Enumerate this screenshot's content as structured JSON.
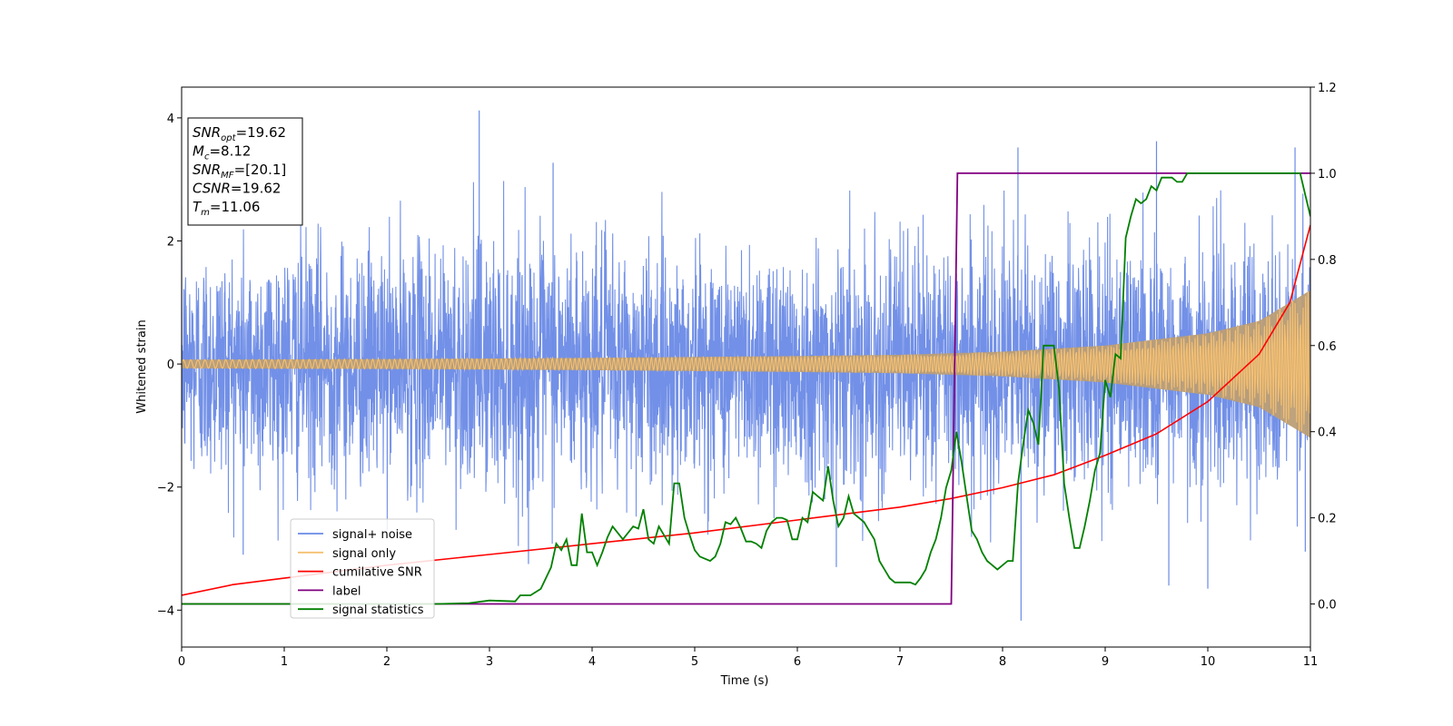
{
  "chart_data": {
    "type": "line",
    "xlabel": "Time (s)",
    "ylabel": "Whitened strain",
    "xlim": [
      0,
      11
    ],
    "ylim_left": [
      -4.6,
      4.5
    ],
    "ylim_right": [
      -0.1,
      1.2
    ],
    "x_ticks": [
      "0",
      "1",
      "2",
      "3",
      "4",
      "5",
      "6",
      "7",
      "8",
      "9",
      "10",
      "11"
    ],
    "y_left_ticks": [
      "4",
      "2",
      "0",
      "−2",
      "−4"
    ],
    "y_right_ticks": [
      "1.2",
      "1.0",
      "0.8",
      "0.6",
      "0.4",
      "0.2",
      "0.0"
    ],
    "colors": {
      "noise": "#6a8ae6",
      "signal": "#f5c071",
      "overlap": "#bb9e76",
      "snr": "#ff0000",
      "label": "#800080",
      "stats": "#008000"
    },
    "legend": {
      "placement": "lower-left",
      "entries": [
        {
          "key": "noise",
          "text": "signal+ noise"
        },
        {
          "key": "signal",
          "text": "signal only"
        },
        {
          "key": "snr",
          "text": "cumilative SNR"
        },
        {
          "key": "label",
          "text": "label"
        },
        {
          "key": "stats",
          "text": "signal statistics"
        }
      ]
    },
    "info_box": {
      "lines": [
        {
          "main": "SNR",
          "sub": "opt",
          "rest": "=19.62"
        },
        {
          "main": "M",
          "sub": "c",
          "rest": "=8.12"
        },
        {
          "main": "SNR",
          "sub": "MF",
          "rest": "=[20.1]"
        },
        {
          "main": "CSNR",
          "sub": "",
          "rest": "=19.62"
        },
        {
          "main": "T",
          "sub": "m",
          "rest": "=11.06"
        }
      ]
    },
    "series": [
      {
        "key": "noise",
        "axis": "left",
        "description_points": "noise envelope (data units)",
        "envelope": {
          "x": [
            0,
            1,
            2,
            3,
            4,
            5,
            6,
            7,
            8,
            9,
            10,
            11
          ],
          "upper": [
            2.4,
            2.5,
            2.4,
            2.6,
            2.5,
            2.4,
            2.4,
            2.5,
            2.5,
            2.5,
            2.5,
            2.6
          ],
          "lower": [
            -2.4,
            -2.5,
            -2.5,
            -2.6,
            -2.5,
            -2.4,
            -2.5,
            -2.5,
            -2.6,
            -2.5,
            -2.6,
            -2.6
          ]
        },
        "spikes": [
          {
            "x": 2.9,
            "y": 4.12
          },
          {
            "x": 3.62,
            "y": 3.27
          },
          {
            "x": 9.5,
            "y": 3.62
          },
          {
            "x": 8.15,
            "y": 3.52
          },
          {
            "x": 10.85,
            "y": 3.52
          },
          {
            "x": 8.18,
            "y": -4.17
          },
          {
            "x": 10.0,
            "y": -3.65
          },
          {
            "x": 9.62,
            "y": -3.6
          },
          {
            "x": 0.6,
            "y": -3.1
          },
          {
            "x": 3.38,
            "y": -3.25
          },
          {
            "x": 6.38,
            "y": -3.3
          },
          {
            "x": 10.95,
            "y": -3.05
          }
        ]
      },
      {
        "key": "signal",
        "axis": "left",
        "amplitude": {
          "x": [
            0,
            2,
            4,
            6,
            7,
            8,
            9,
            10,
            10.5,
            11
          ],
          "y": [
            0.07,
            0.08,
            0.1,
            0.13,
            0.15,
            0.2,
            0.3,
            0.5,
            0.7,
            1.2
          ]
        }
      },
      {
        "key": "snr",
        "axis": "right",
        "x": [
          0,
          0.5,
          1,
          2,
          3,
          4,
          5,
          6,
          7,
          7.5,
          8,
          8.5,
          9,
          9.5,
          10,
          10.5,
          10.8,
          11
        ],
        "y": [
          0.02,
          0.045,
          0.06,
          0.09,
          0.115,
          0.14,
          0.165,
          0.195,
          0.225,
          0.245,
          0.27,
          0.3,
          0.345,
          0.395,
          0.47,
          0.58,
          0.7,
          0.88
        ]
      },
      {
        "key": "label",
        "axis": "right",
        "x": [
          0,
          7.5,
          7.56,
          11
        ],
        "y": [
          0.0,
          0.0,
          1.0,
          1.0
        ]
      },
      {
        "key": "stats",
        "axis": "right",
        "x": [
          0,
          0.5,
          1,
          1.5,
          2,
          2.5,
          2.8,
          3.0,
          3.25,
          3.3,
          3.4,
          3.5,
          3.55,
          3.6,
          3.65,
          3.7,
          3.75,
          3.8,
          3.85,
          3.9,
          3.95,
          4.0,
          4.05,
          4.1,
          4.15,
          4.2,
          4.3,
          4.4,
          4.45,
          4.5,
          4.55,
          4.6,
          4.65,
          4.7,
          4.75,
          4.8,
          4.85,
          4.9,
          4.95,
          5.0,
          5.05,
          5.1,
          5.15,
          5.2,
          5.25,
          5.3,
          5.35,
          5.4,
          5.45,
          5.5,
          5.55,
          5.6,
          5.65,
          5.7,
          5.75,
          5.8,
          5.85,
          5.9,
          5.95,
          6.0,
          6.05,
          6.1,
          6.15,
          6.2,
          6.25,
          6.3,
          6.35,
          6.4,
          6.45,
          6.5,
          6.55,
          6.6,
          6.65,
          6.7,
          6.75,
          6.8,
          6.85,
          6.9,
          6.95,
          7.0,
          7.05,
          7.1,
          7.15,
          7.2,
          7.25,
          7.3,
          7.35,
          7.4,
          7.45,
          7.5,
          7.55,
          7.6,
          7.65,
          7.7,
          7.75,
          7.8,
          7.85,
          7.9,
          7.95,
          8.0,
          8.05,
          8.1,
          8.15,
          8.2,
          8.25,
          8.3,
          8.35,
          8.4,
          8.45,
          8.5,
          8.55,
          8.6,
          8.65,
          8.7,
          8.75,
          8.8,
          8.85,
          8.9,
          8.95,
          9.0,
          9.05,
          9.1,
          9.15,
          9.2,
          9.25,
          9.3,
          9.35,
          9.4,
          9.45,
          9.5,
          9.55,
          9.6,
          9.65,
          9.7,
          9.75,
          9.8,
          9.85,
          9.9,
          10.0,
          10.5,
          10.8,
          10.9,
          10.95,
          11.0
        ],
        "y": [
          0.0,
          0.0,
          0.0,
          0.0,
          0.0,
          0.0,
          0.002,
          0.008,
          0.006,
          0.02,
          0.02,
          0.035,
          0.06,
          0.085,
          0.14,
          0.125,
          0.15,
          0.09,
          0.09,
          0.21,
          0.12,
          0.12,
          0.09,
          0.12,
          0.155,
          0.18,
          0.15,
          0.18,
          0.175,
          0.22,
          0.15,
          0.14,
          0.18,
          0.16,
          0.14,
          0.28,
          0.28,
          0.2,
          0.16,
          0.125,
          0.11,
          0.105,
          0.1,
          0.11,
          0.14,
          0.19,
          0.185,
          0.2,
          0.175,
          0.145,
          0.145,
          0.14,
          0.13,
          0.17,
          0.19,
          0.2,
          0.2,
          0.195,
          0.15,
          0.15,
          0.2,
          0.19,
          0.26,
          0.25,
          0.24,
          0.32,
          0.24,
          0.18,
          0.2,
          0.25,
          0.21,
          0.2,
          0.19,
          0.17,
          0.15,
          0.1,
          0.08,
          0.06,
          0.05,
          0.05,
          0.05,
          0.05,
          0.045,
          0.06,
          0.08,
          0.12,
          0.15,
          0.2,
          0.27,
          0.31,
          0.4,
          0.33,
          0.25,
          0.17,
          0.15,
          0.12,
          0.1,
          0.09,
          0.08,
          0.09,
          0.1,
          0.1,
          0.28,
          0.37,
          0.45,
          0.42,
          0.37,
          0.6,
          0.6,
          0.6,
          0.5,
          0.28,
          0.2,
          0.13,
          0.13,
          0.18,
          0.24,
          0.31,
          0.35,
          0.52,
          0.48,
          0.58,
          0.57,
          0.85,
          0.9,
          0.94,
          0.93,
          0.94,
          0.97,
          0.96,
          0.99,
          0.99,
          0.99,
          0.98,
          0.98,
          1.0,
          1.0,
          1.0,
          1.0,
          1.0,
          1.0,
          1.0,
          0.95,
          0.9
        ]
      }
    ]
  }
}
